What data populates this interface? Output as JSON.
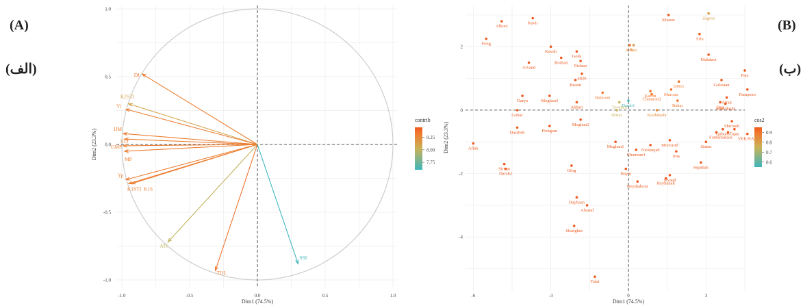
{
  "labels": {
    "left_tag": "(A)",
    "left_tag_fa": "(الف)",
    "right_tag": "(B)",
    "right_tag_fa": "(ب)"
  },
  "colors": {
    "low": "#3eb6bd",
    "mid": "#c9b257",
    "high": "#f07a2e",
    "top": "#ee5a1f",
    "circle": "#cccccc",
    "grid": "#ececec"
  },
  "chart_data": [
    {
      "type": "scatter",
      "subtype": "variables-factor-map",
      "xlabel": "Dim1 (74.5%)",
      "ylabel": "Dim2 (23.3%)",
      "xlim": [
        -1.0,
        1.0
      ],
      "ylim": [
        -1.0,
        1.0
      ],
      "x_ticks": [
        "-1.0",
        "-0.5",
        "0.0",
        "0.5",
        "1.0"
      ],
      "y_ticks": [
        "1.0",
        "0.5",
        "0.0",
        "-0.5",
        "-1.0"
      ],
      "grid": true,
      "legend": {
        "title": "contrib",
        "position": "right",
        "ticks": [
          "8.25",
          "8.00",
          "7.75"
        ],
        "range": [
          7.6,
          8.45
        ]
      },
      "vectors": [
        {
          "name": "DI",
          "x": -0.85,
          "y": 0.52,
          "contrib": 8.3
        },
        {
          "name": "K2STI",
          "x": -0.95,
          "y": 0.3,
          "contrib": 8.1
        },
        {
          "name": "Yi",
          "x": -0.97,
          "y": 0.26,
          "contrib": 8.3
        },
        {
          "name": "HM",
          "x": -0.99,
          "y": 0.08,
          "contrib": 8.3
        },
        {
          "name": "STI",
          "x": -0.98,
          "y": 0.04,
          "contrib": 8.3
        },
        {
          "name": "GMP",
          "x": -0.99,
          "y": -0.01,
          "contrib": 8.3
        },
        {
          "name": "MP",
          "x": -0.98,
          "y": -0.05,
          "contrib": 8.3
        },
        {
          "name": "Yp",
          "x": -0.97,
          "y": -0.26,
          "contrib": 8.3
        },
        {
          "name": "K1STI",
          "x": -0.93,
          "y": -0.29,
          "contrib": 8.3
        },
        {
          "name": "K1S",
          "x": -0.95,
          "y": -0.29,
          "contrib": 8.3
        },
        {
          "name": "ATI",
          "x": -0.66,
          "y": -0.72,
          "contrib": 8.0
        },
        {
          "name": "TOL",
          "x": -0.31,
          "y": -0.93,
          "contrib": 8.35
        },
        {
          "name": "SSI",
          "x": 0.3,
          "y": -0.88,
          "contrib": 7.6
        }
      ]
    },
    {
      "type": "scatter",
      "subtype": "individuals-factor-map",
      "xlabel": "Dim1 (74.5%)",
      "ylabel": "Dim2 (23.3%)",
      "xlim": [
        -6.3,
        4.5
      ],
      "ylim": [
        -5.7,
        3.3
      ],
      "x_ticks": [
        "-6",
        "-3",
        "0",
        "3"
      ],
      "y_ticks": [
        "2",
        "0",
        "-2",
        "-4"
      ],
      "grid": true,
      "legend": {
        "title": "cos2",
        "position": "right",
        "ticks": [
          "0.9",
          "0.8",
          "0.7",
          "0.6"
        ],
        "range": [
          0.55,
          0.95
        ]
      },
      "points": [
        {
          "name": "Zagros",
          "x": 3.1,
          "y": 3.05,
          "cos2": 0.8
        },
        {
          "name": "Khazar",
          "x": 1.55,
          "y": 3.0,
          "cos2": 0.95
        },
        {
          "name": "Alborz",
          "x": -4.9,
          "y": 2.8,
          "cos2": 0.95
        },
        {
          "name": "Kavir",
          "x": -3.7,
          "y": 2.9,
          "cos2": 0.95
        },
        {
          "name": "Arta",
          "x": 2.75,
          "y": 2.4,
          "cos2": 0.95
        },
        {
          "name": "Fong",
          "x": -5.5,
          "y": 2.25,
          "cos2": 0.95
        },
        {
          "name": "Adl1",
          "x": 0.05,
          "y": 2.05,
          "cos2": 0.9
        },
        {
          "name": "Naz",
          "x": 0.2,
          "y": 2.05,
          "cos2": 0.8
        },
        {
          "name": "Kavah",
          "x": -3.0,
          "y": 2.0,
          "cos2": 0.95
        },
        {
          "name": "Gods",
          "x": -2.0,
          "y": 1.85,
          "cos2": 0.95
        },
        {
          "name": "Mahdavi",
          "x": 3.1,
          "y": 1.75,
          "cos2": 0.95
        },
        {
          "name": "Arvand",
          "x": -3.85,
          "y": 1.5,
          "cos2": 0.95
        },
        {
          "name": "Roshan",
          "x": -2.6,
          "y": 1.65,
          "cos2": 0.95
        },
        {
          "name": "Pishtaz",
          "x": -1.85,
          "y": 1.55,
          "cos2": 0.95
        },
        {
          "name": "Pars",
          "x": 4.5,
          "y": 1.25,
          "cos2": 0.95
        },
        {
          "name": "4820",
          "x": -1.8,
          "y": 1.15,
          "cos2": 0.95
        },
        {
          "name": "Biston",
          "x": -2.05,
          "y": 0.95,
          "cos2": 0.95
        },
        {
          "name": "DN11",
          "x": 1.95,
          "y": 0.9,
          "cos2": 0.9
        },
        {
          "name": "Golestan",
          "x": 3.6,
          "y": 0.95,
          "cos2": 0.95
        },
        {
          "name": "Pampeno",
          "x": 4.6,
          "y": 0.65,
          "cos2": 0.95
        },
        {
          "name": "Maroun",
          "x": 1.65,
          "y": 0.65,
          "cos2": 0.9
        },
        {
          "name": "Karim",
          "x": 0.85,
          "y": 0.6,
          "cos2": 0.9
        },
        {
          "name": "Hamoon",
          "x": -1.0,
          "y": 0.55,
          "cos2": 0.9
        },
        {
          "name": "Darya",
          "x": -4.1,
          "y": 0.45,
          "cos2": 0.95
        },
        {
          "name": "Moghan3",
          "x": -3.05,
          "y": 0.45,
          "cos2": 0.95
        },
        {
          "name": "Chamran2",
          "x": 0.9,
          "y": 0.5,
          "cos2": 0.9
        },
        {
          "name": "Atrak",
          "x": 3.8,
          "y": 0.4,
          "cos2": 0.95
        },
        {
          "name": "Akbari",
          "x": -2.0,
          "y": 0.25,
          "cos2": 0.95
        },
        {
          "name": "Darab1",
          "x": 0.0,
          "y": 0.3,
          "cos2": 0.55
        },
        {
          "name": "Bahar",
          "x": 1.9,
          "y": 0.3,
          "cos2": 0.9
        },
        {
          "name": "Deg",
          "x": 3.55,
          "y": 0.25,
          "cos2": 0.95
        },
        {
          "name": "Tooshen",
          "x": -0.35,
          "y": 0.25,
          "cos2": 0.75
        },
        {
          "name": "Marvdasht",
          "x": 3.75,
          "y": 0.2,
          "cos2": 0.95
        },
        {
          "name": "Koohdasht",
          "x": 1.1,
          "y": 0.0,
          "cos2": 0.85
        },
        {
          "name": "Gohar",
          "x": -4.3,
          "y": 0.0,
          "cos2": 0.95
        },
        {
          "name": "Shiraz",
          "x": -0.45,
          "y": 0.0,
          "cos2": 0.75
        },
        {
          "name": "Moghan2",
          "x": -1.85,
          "y": -0.3,
          "cos2": 0.95
        },
        {
          "name": "Shiroodi",
          "x": 4.0,
          "y": -0.35,
          "cos2": 0.95
        },
        {
          "name": "Darabeh",
          "x": -4.3,
          "y": -0.55,
          "cos2": 0.95
        },
        {
          "name": "Pishgam",
          "x": -3.05,
          "y": -0.5,
          "cos2": 0.95
        },
        {
          "name": "Qaboos",
          "x": 3.65,
          "y": -0.6,
          "cos2": 0.95
        },
        {
          "name": "Tajan",
          "x": 4.1,
          "y": -0.6,
          "cos2": 0.95
        },
        {
          "name": "Fontana",
          "x": 3.4,
          "y": -0.7,
          "cos2": 0.95
        },
        {
          "name": "Baaz",
          "x": 3.85,
          "y": -0.7,
          "cos2": 0.95
        },
        {
          "name": "VEE/NAC",
          "x": 4.6,
          "y": -0.75,
          "cos2": 0.95
        },
        {
          "name": "Morvarid",
          "x": 1.6,
          "y": -0.95,
          "cos2": 0.95
        },
        {
          "name": "Sisten",
          "x": 3.0,
          "y": -1.0,
          "cos2": 0.95
        },
        {
          "name": "Aflak",
          "x": -6.0,
          "y": -1.05,
          "cos2": 0.95
        },
        {
          "name": "Moghan1",
          "x": -0.5,
          "y": -1.0,
          "cos2": 0.95
        },
        {
          "name": "Nicknejad",
          "x": 0.85,
          "y": -1.1,
          "cos2": 0.95
        },
        {
          "name": "Chamran1",
          "x": 0.3,
          "y": -1.25,
          "cos2": 0.95
        },
        {
          "name": "Inia",
          "x": 1.85,
          "y": -1.3,
          "cos2": 0.95
        },
        {
          "name": "Sepahan",
          "x": 2.8,
          "y": -1.65,
          "cos2": 0.95
        },
        {
          "name": "Sirvan",
          "x": -4.8,
          "y": -1.7,
          "cos2": 0.95
        },
        {
          "name": "Darab2",
          "x": -4.75,
          "y": -1.85,
          "cos2": 0.95
        },
        {
          "name": "Ofog",
          "x": -2.2,
          "y": -1.75,
          "cos2": 0.95
        },
        {
          "name": "Bayat",
          "x": -0.1,
          "y": -1.85,
          "cos2": 0.95
        },
        {
          "name": "Sivand",
          "x": 1.6,
          "y": -2.05,
          "cos2": 0.95
        },
        {
          "name": "Reyhaneh",
          "x": 1.45,
          "y": -2.15,
          "cos2": 0.95
        },
        {
          "name": "Neyshabour",
          "x": 0.35,
          "y": -2.25,
          "cos2": 0.95
        },
        {
          "name": "Daybaan",
          "x": -2.0,
          "y": -2.75,
          "cos2": 0.95
        },
        {
          "name": "Alvand",
          "x": -1.6,
          "y": -3.0,
          "cos2": 0.95
        },
        {
          "name": "Shanghui",
          "x": -2.1,
          "y": -3.65,
          "cos2": 0.95
        },
        {
          "name": "Falat",
          "x": -1.3,
          "y": -5.25,
          "cos2": 0.95
        }
      ]
    }
  ]
}
